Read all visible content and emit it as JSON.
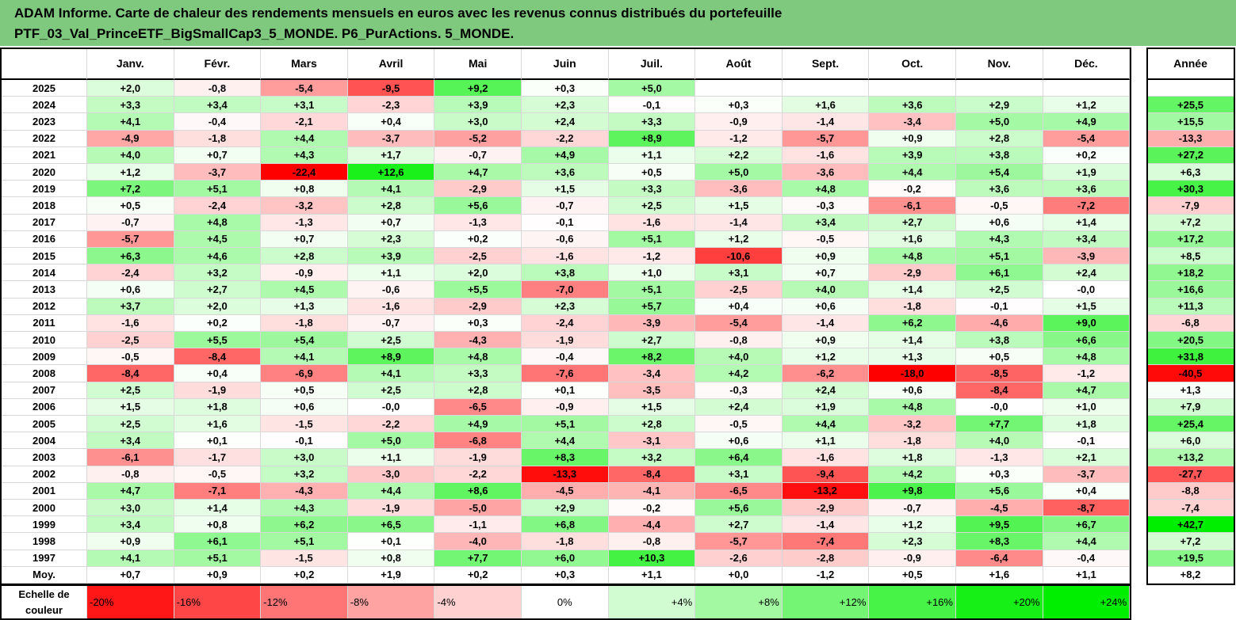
{
  "title": {
    "line1": "ADAM Informe. Carte de chaleur des rendements mensuels en euros avec les revenus connus distribués du portefeuille",
    "line2": "PTF_03_Val_PrinceETF_BigSmallCap3_5_MONDE. P6_PurActions. 5_MONDE."
  },
  "chart_data": {
    "type": "heatmap",
    "title": "ADAM Informe. Carte de chaleur des rendements mensuels en euros avec les revenus connus distribués du portefeuille PTF_03_Val_PrinceETF_BigSmallCap3_5_MONDE. P6_PurActions. 5_MONDE.",
    "columns": [
      "Janv.",
      "Févr.",
      "Mars",
      "Avril",
      "Mai",
      "Juin",
      "Juil.",
      "Août",
      "Sept.",
      "Oct.",
      "Nov.",
      "Déc."
    ],
    "year_column_label": "Année",
    "rows": [
      {
        "year": "2025",
        "m": [
          "+2,0",
          "-0,8",
          "-5,4",
          "-9,5",
          "+9,2",
          "+0,3",
          "+5,0",
          "",
          "",
          "",
          "",
          ""
        ],
        "y": ""
      },
      {
        "year": "2024",
        "m": [
          "+3,3",
          "+3,4",
          "+3,1",
          "-2,3",
          "+3,9",
          "+2,3",
          "-0,1",
          "+0,3",
          "+1,6",
          "+3,6",
          "+2,9",
          "+1,2"
        ],
        "y": "+25,5"
      },
      {
        "year": "2023",
        "m": [
          "+4,1",
          "-0,4",
          "-2,1",
          "+0,4",
          "+3,0",
          "+2,4",
          "+3,3",
          "-0,9",
          "-1,4",
          "-3,4",
          "+5,0",
          "+4,9"
        ],
        "y": "+15,5"
      },
      {
        "year": "2022",
        "m": [
          "-4,9",
          "-1,8",
          "+4,4",
          "-3,7",
          "-5,2",
          "-2,2",
          "+8,9",
          "-1,2",
          "-5,7",
          "+0,9",
          "+2,8",
          "-5,4"
        ],
        "y": "-13,3"
      },
      {
        "year": "2021",
        "m": [
          "+4,0",
          "+0,7",
          "+4,3",
          "+1,7",
          "-0,7",
          "+4,9",
          "+1,1",
          "+2,2",
          "-1,6",
          "+3,9",
          "+3,8",
          "+0,2"
        ],
        "y": "+27,2"
      },
      {
        "year": "2020",
        "m": [
          "+1,2",
          "-3,7",
          "-22,4",
          "+12,6",
          "+4,7",
          "+3,6",
          "+0,5",
          "+5,0",
          "-3,6",
          "+4,4",
          "+5,4",
          "+1,9"
        ],
        "y": "+6,3"
      },
      {
        "year": "2019",
        "m": [
          "+7,2",
          "+5,1",
          "+0,8",
          "+4,1",
          "-2,9",
          "+1,5",
          "+3,3",
          "-3,6",
          "+4,8",
          "-0,2",
          "+3,6",
          "+3,6"
        ],
        "y": "+30,3"
      },
      {
        "year": "2018",
        "m": [
          "+0,5",
          "-2,4",
          "-3,2",
          "+2,8",
          "+5,6",
          "-0,7",
          "+2,5",
          "+1,5",
          "-0,3",
          "-6,1",
          "-0,5",
          "-7,2"
        ],
        "y": "-7,9"
      },
      {
        "year": "2017",
        "m": [
          "-0,7",
          "+4,8",
          "-1,3",
          "+0,7",
          "-1,3",
          "-0,1",
          "-1,6",
          "-1,4",
          "+3,4",
          "+2,7",
          "+0,6",
          "+1,4"
        ],
        "y": "+7,2"
      },
      {
        "year": "2016",
        "m": [
          "-5,7",
          "+4,5",
          "+0,7",
          "+2,3",
          "+0,2",
          "-0,6",
          "+5,1",
          "+1,2",
          "-0,5",
          "+1,6",
          "+4,3",
          "+3,4"
        ],
        "y": "+17,2"
      },
      {
        "year": "2015",
        "m": [
          "+6,3",
          "+4,6",
          "+2,8",
          "+3,9",
          "-2,5",
          "-1,6",
          "-1,2",
          "-10,6",
          "+0,9",
          "+4,8",
          "+5,1",
          "-3,9"
        ],
        "y": "+8,5"
      },
      {
        "year": "2014",
        "m": [
          "-2,4",
          "+3,2",
          "-0,9",
          "+1,1",
          "+2,0",
          "+3,8",
          "+1,0",
          "+3,1",
          "+0,7",
          "-2,9",
          "+6,1",
          "+2,4"
        ],
        "y": "+18,2"
      },
      {
        "year": "2013",
        "m": [
          "+0,6",
          "+2,7",
          "+4,5",
          "-0,6",
          "+5,5",
          "-7,0",
          "+5,1",
          "-2,5",
          "+4,0",
          "+1,4",
          "+2,5",
          "-0,0"
        ],
        "y": "+16,6"
      },
      {
        "year": "2012",
        "m": [
          "+3,7",
          "+2,0",
          "+1,3",
          "-1,6",
          "-2,9",
          "+2,3",
          "+5,7",
          "+0,4",
          "+0,6",
          "-1,8",
          "-0,1",
          "+1,5"
        ],
        "y": "+11,3"
      },
      {
        "year": "2011",
        "m": [
          "-1,6",
          "+0,2",
          "-1,8",
          "-0,7",
          "+0,3",
          "-2,4",
          "-3,9",
          "-5,4",
          "-1,4",
          "+6,2",
          "-4,6",
          "+9,0"
        ],
        "y": "-6,8"
      },
      {
        "year": "2010",
        "m": [
          "-2,5",
          "+5,5",
          "+5,4",
          "+2,5",
          "-4,3",
          "-1,9",
          "+2,7",
          "-0,8",
          "+0,9",
          "+1,4",
          "+3,8",
          "+6,6"
        ],
        "y": "+20,5"
      },
      {
        "year": "2009",
        "m": [
          "-0,5",
          "-8,4",
          "+4,1",
          "+8,9",
          "+4,8",
          "-0,4",
          "+8,2",
          "+4,0",
          "+1,2",
          "+1,3",
          "+0,5",
          "+4,8"
        ],
        "y": "+31,8"
      },
      {
        "year": "2008",
        "m": [
          "-8,4",
          "+0,4",
          "-6,9",
          "+4,1",
          "+3,3",
          "-7,6",
          "-3,4",
          "+4,2",
          "-6,2",
          "-18,0",
          "-8,5",
          "-1,2"
        ],
        "y": "-40,5"
      },
      {
        "year": "2007",
        "m": [
          "+2,5",
          "-1,9",
          "+0,5",
          "+2,5",
          "+2,8",
          "+0,1",
          "-3,5",
          "-0,3",
          "+2,4",
          "+0,6",
          "-8,4",
          "+4,7"
        ],
        "y": "+1,3"
      },
      {
        "year": "2006",
        "m": [
          "+1,5",
          "+1,8",
          "+0,6",
          "-0,0",
          "-6,5",
          "-0,9",
          "+1,5",
          "+2,4",
          "+1,9",
          "+4,8",
          "-0,0",
          "+1,0"
        ],
        "y": "+7,9"
      },
      {
        "year": "2005",
        "m": [
          "+2,5",
          "+1,6",
          "-1,5",
          "-2,2",
          "+4,9",
          "+5,1",
          "+2,8",
          "-0,5",
          "+4,4",
          "-3,2",
          "+7,7",
          "+1,8"
        ],
        "y": "+25,4"
      },
      {
        "year": "2004",
        "m": [
          "+3,4",
          "+0,1",
          "-0,1",
          "+5,0",
          "-6,8",
          "+4,4",
          "-3,1",
          "+0,6",
          "+1,1",
          "-1,8",
          "+4,0",
          "-0,1"
        ],
        "y": "+6,0"
      },
      {
        "year": "2003",
        "m": [
          "-6,1",
          "-1,7",
          "+3,0",
          "+1,1",
          "-1,9",
          "+8,3",
          "+3,2",
          "+6,4",
          "-1,6",
          "+1,8",
          "-1,3",
          "+2,1"
        ],
        "y": "+13,2"
      },
      {
        "year": "2002",
        "m": [
          "-0,8",
          "-0,5",
          "+3,2",
          "-3,0",
          "-2,2",
          "-13,3",
          "-8,4",
          "+3,1",
          "-9,4",
          "+4,2",
          "+0,3",
          "-3,7"
        ],
        "y": "-27,7"
      },
      {
        "year": "2001",
        "m": [
          "+4,7",
          "-7,1",
          "-4,3",
          "+4,4",
          "+8,6",
          "-4,5",
          "-4,1",
          "-6,5",
          "-13,2",
          "+9,8",
          "+5,6",
          "+0,4"
        ],
        "y": "-8,8"
      },
      {
        "year": "2000",
        "m": [
          "+3,0",
          "+1,4",
          "+4,3",
          "-1,9",
          "-5,0",
          "+2,9",
          "-0,2",
          "+5,6",
          "-2,9",
          "-0,7",
          "-4,5",
          "-8,7"
        ],
        "y": "-7,4"
      },
      {
        "year": "1999",
        "m": [
          "+3,4",
          "+0,8",
          "+6,2",
          "+6,5",
          "-1,1",
          "+6,8",
          "-4,4",
          "+2,7",
          "-1,4",
          "+1,2",
          "+9,5",
          "+6,7"
        ],
        "y": "+42,7"
      },
      {
        "year": "1998",
        "m": [
          "+0,9",
          "+6,1",
          "+5,1",
          "+0,1",
          "-4,0",
          "-1,8",
          "-0,8",
          "-5,7",
          "-7,4",
          "+2,3",
          "+8,3",
          "+4,4"
        ],
        "y": "+7,2"
      },
      {
        "year": "1997",
        "m": [
          "+4,1",
          "+5,1",
          "-1,5",
          "+0,8",
          "+7,7",
          "+6,0",
          "+10,3",
          "-2,6",
          "-2,8",
          "-0,9",
          "-6,4",
          "-0,4"
        ],
        "y": "+19,5"
      }
    ],
    "average": {
      "label": "Moy.",
      "m": [
        "+0,7",
        "+0,9",
        "+0,2",
        "+1,9",
        "+0,2",
        "+0,3",
        "+1,1",
        "+0,0",
        "-1,2",
        "+0,5",
        "+1,6",
        "+1,1"
      ],
      "y": "+8,2"
    },
    "legend": {
      "label_line1": "Echelle de",
      "label_line2": "couleur",
      "steps": [
        "-20%",
        "-16%",
        "-12%",
        "-8%",
        "-4%",
        "0%",
        "+4%",
        "+8%",
        "+12%",
        "+16%",
        "+20%",
        "+24%"
      ]
    },
    "colors": {
      "negative": "#ff0000",
      "neutral": "#ffffff",
      "positive": "#00ee00",
      "title_bg": "#7fc97f"
    }
  }
}
